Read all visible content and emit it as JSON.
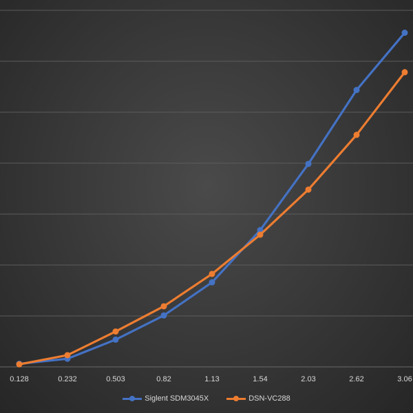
{
  "chart_data": {
    "type": "line",
    "categories": [
      "0.128",
      "0.232",
      "0.503",
      "0.82",
      "1.13",
      "1.54",
      "2.03",
      "2.62",
      "3.06"
    ],
    "series": [
      {
        "name": "Siglent SDM3045X",
        "color": "#4472c4",
        "values": [
          2.4,
          6.4,
          21.4,
          40.4,
          66.4,
          107.4,
          159.4,
          217.4,
          262.4
        ]
      },
      {
        "name": "DSN-VC288",
        "color": "#ed7d31",
        "values": [
          2.0,
          9.2,
          27.8,
          47.6,
          73.0,
          103.8,
          139.2,
          182.2,
          231.4
        ]
      }
    ],
    "ylim": [
      0,
      280
    ],
    "grid": true,
    "legend": "bottom",
    "title": "",
    "xlabel": "",
    "ylabel": ""
  }
}
